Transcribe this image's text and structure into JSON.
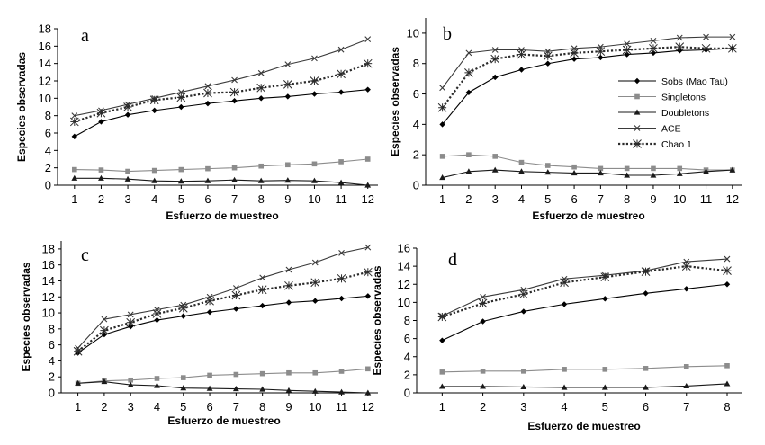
{
  "legend": {
    "entries": [
      {
        "key": "sobs",
        "label": "Sobs (Mao Tau)"
      },
      {
        "key": "singletons",
        "label": "Singletons"
      },
      {
        "key": "doubletons",
        "label": "Doubletons"
      },
      {
        "key": "ace",
        "label": "ACE"
      },
      {
        "key": "chao1",
        "label": "Chao 1"
      }
    ]
  },
  "styles": {
    "sobs": {
      "color": "#000000",
      "marker": "diamond",
      "dashed": false
    },
    "singletons": {
      "color": "#8c8c8c",
      "marker": "square",
      "dashed": false
    },
    "doubletons": {
      "color": "#1a1a1a",
      "marker": "triangle",
      "dashed": false
    },
    "ace": {
      "color": "#3a3a3a",
      "marker": "x",
      "dashed": false
    },
    "chao1": {
      "color": "#2a2a2a",
      "marker": "star",
      "dashed": true
    }
  },
  "chart_data": [
    {
      "id": "a",
      "type": "line",
      "panel_label": "a",
      "xlabel": "Esfuerzo de muestreo",
      "ylabel": "Especies observadas",
      "x": [
        1,
        2,
        3,
        4,
        5,
        6,
        7,
        8,
        9,
        10,
        11,
        12
      ],
      "xticks": [
        1,
        2,
        3,
        4,
        5,
        6,
        7,
        8,
        9,
        10,
        11,
        12
      ],
      "ylim": [
        0,
        18
      ],
      "yticks": [
        0,
        2,
        4,
        6,
        8,
        10,
        12,
        14,
        16,
        18
      ],
      "series": [
        {
          "key": "sobs",
          "name": "Sobs (Mao Tau)",
          "values": [
            5.6,
            7.3,
            8.1,
            8.6,
            9.0,
            9.4,
            9.7,
            10.0,
            10.2,
            10.5,
            10.7,
            11.0
          ]
        },
        {
          "key": "singletons",
          "name": "Singletons",
          "values": [
            1.8,
            1.75,
            1.6,
            1.7,
            1.8,
            1.9,
            2.0,
            2.2,
            2.35,
            2.45,
            2.7,
            3.0
          ]
        },
        {
          "key": "doubletons",
          "name": "Doubletons",
          "values": [
            0.8,
            0.8,
            0.7,
            0.5,
            0.45,
            0.5,
            0.6,
            0.5,
            0.55,
            0.5,
            0.3,
            0.0
          ]
        },
        {
          "key": "ace",
          "name": "ACE",
          "values": [
            8.0,
            8.6,
            9.3,
            10.0,
            10.7,
            11.4,
            12.1,
            12.9,
            13.9,
            14.6,
            15.6,
            16.8
          ]
        },
        {
          "key": "chao1",
          "name": "Chao 1",
          "values": [
            7.3,
            8.3,
            9.0,
            9.8,
            10.1,
            10.6,
            10.7,
            11.2,
            11.6,
            12.0,
            12.8,
            14.0
          ]
        }
      ]
    },
    {
      "id": "b",
      "type": "line",
      "panel_label": "b",
      "xlabel": "Esfuerzo de muestreo",
      "ylabel": "Especies observadas",
      "x": [
        1,
        2,
        3,
        4,
        5,
        6,
        7,
        8,
        9,
        10,
        11,
        12
      ],
      "xticks": [
        1,
        2,
        3,
        4,
        5,
        6,
        7,
        8,
        9,
        10,
        11,
        12
      ],
      "ylim": [
        0,
        11
      ],
      "yticks": [
        0,
        2,
        4,
        6,
        8,
        10
      ],
      "legend_position": "right",
      "series": [
        {
          "key": "sobs",
          "name": "Sobs (Mao Tau)",
          "values": [
            4.0,
            6.1,
            7.1,
            7.6,
            8.0,
            8.3,
            8.4,
            8.6,
            8.7,
            8.85,
            8.9,
            9.0
          ]
        },
        {
          "key": "singletons",
          "name": "Singletons",
          "values": [
            1.9,
            2.0,
            1.9,
            1.5,
            1.3,
            1.2,
            1.1,
            1.1,
            1.1,
            1.1,
            1.0,
            1.0
          ]
        },
        {
          "key": "doubletons",
          "name": "Doubletons",
          "values": [
            0.5,
            0.9,
            1.0,
            0.9,
            0.85,
            0.8,
            0.8,
            0.65,
            0.65,
            0.75,
            0.9,
            1.0
          ]
        },
        {
          "key": "ace",
          "name": "ACE",
          "values": [
            6.4,
            8.7,
            8.9,
            8.9,
            8.8,
            9.0,
            9.1,
            9.3,
            9.5,
            9.7,
            9.75,
            9.75
          ]
        },
        {
          "key": "chao1",
          "name": "Chao 1",
          "values": [
            5.1,
            7.4,
            8.3,
            8.6,
            8.5,
            8.7,
            8.8,
            8.9,
            9.0,
            9.1,
            9.0,
            9.0
          ]
        }
      ]
    },
    {
      "id": "c",
      "type": "line",
      "panel_label": "c",
      "xlabel": "Esfuerzo de muestreo",
      "ylabel": "Especies observadas",
      "x": [
        1,
        2,
        3,
        4,
        5,
        6,
        7,
        8,
        9,
        10,
        11,
        12
      ],
      "xticks": [
        1,
        2,
        3,
        4,
        5,
        6,
        7,
        8,
        9,
        10,
        11,
        12
      ],
      "ylim": [
        0,
        19
      ],
      "yticks": [
        0,
        2,
        4,
        6,
        8,
        10,
        12,
        14,
        16,
        18
      ],
      "series": [
        {
          "key": "sobs",
          "name": "Sobs (Mao Tau)",
          "values": [
            5.0,
            7.3,
            8.3,
            9.1,
            9.6,
            10.1,
            10.5,
            10.9,
            11.3,
            11.5,
            11.8,
            12.1
          ]
        },
        {
          "key": "singletons",
          "name": "Singletons",
          "values": [
            1.2,
            1.5,
            1.6,
            1.8,
            1.9,
            2.2,
            2.3,
            2.4,
            2.5,
            2.5,
            2.7,
            3.0
          ]
        },
        {
          "key": "doubletons",
          "name": "Doubletons",
          "values": [
            1.2,
            1.4,
            1.0,
            0.9,
            0.6,
            0.55,
            0.5,
            0.45,
            0.3,
            0.2,
            0.1,
            0.0
          ]
        },
        {
          "key": "ace",
          "name": "ACE",
          "values": [
            5.6,
            9.2,
            9.8,
            10.4,
            11.0,
            12.0,
            13.1,
            14.4,
            15.4,
            16.3,
            17.5,
            18.2
          ]
        },
        {
          "key": "chao1",
          "name": "Chao 1",
          "values": [
            5.2,
            7.8,
            8.8,
            9.9,
            10.6,
            11.5,
            12.2,
            12.9,
            13.4,
            13.8,
            14.3,
            15.1
          ]
        }
      ]
    },
    {
      "id": "d",
      "type": "line",
      "panel_label": "d",
      "xlabel": "Esfuerzo de muestreo",
      "ylabel": "Especies observadas",
      "x": [
        1,
        2,
        3,
        4,
        5,
        6,
        7,
        8
      ],
      "xticks": [
        1,
        2,
        3,
        4,
        5,
        6,
        7,
        8
      ],
      "ylim": [
        0,
        16
      ],
      "yticks": [
        0,
        2,
        4,
        6,
        8,
        10,
        12,
        14,
        16
      ],
      "series": [
        {
          "key": "sobs",
          "name": "Sobs (Mao Tau)",
          "values": [
            5.8,
            7.9,
            9.0,
            9.8,
            10.4,
            11.0,
            11.5,
            12.0
          ]
        },
        {
          "key": "singletons",
          "name": "Singletons",
          "values": [
            2.3,
            2.4,
            2.4,
            2.6,
            2.6,
            2.7,
            2.9,
            3.0
          ]
        },
        {
          "key": "doubletons",
          "name": "Doubletons",
          "values": [
            0.7,
            0.7,
            0.65,
            0.6,
            0.6,
            0.6,
            0.75,
            1.0
          ]
        },
        {
          "key": "ace",
          "name": "ACE",
          "values": [
            8.5,
            10.6,
            11.4,
            12.6,
            13.0,
            13.5,
            14.5,
            14.8
          ]
        },
        {
          "key": "chao1",
          "name": "Chao 1",
          "values": [
            8.4,
            9.9,
            10.9,
            12.2,
            12.8,
            13.4,
            14.0,
            13.5
          ]
        }
      ]
    }
  ]
}
